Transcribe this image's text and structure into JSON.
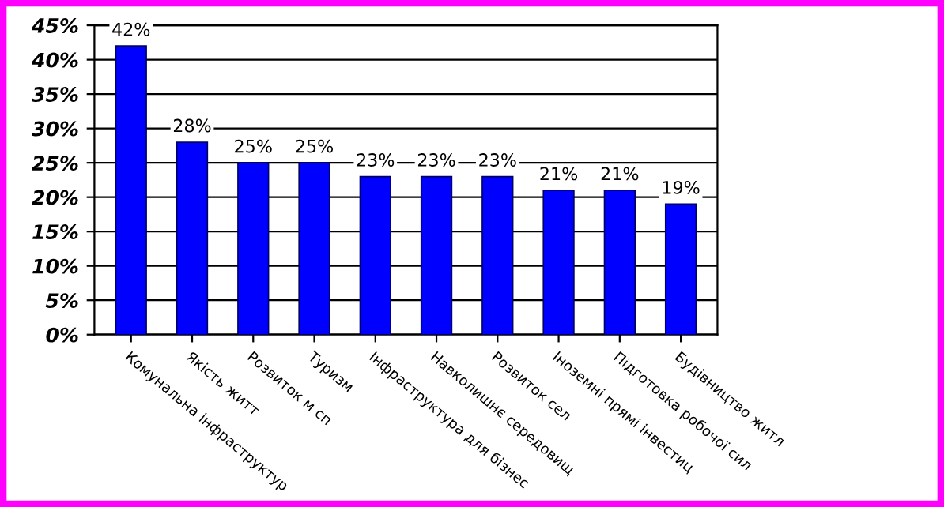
{
  "chart_data": {
    "type": "bar",
    "categories": [
      "Комунальна інфраструктур",
      "Якість житт",
      "Розвиток м сп",
      "Туризм",
      "Інфраструктура для бізнес",
      "Навколишнє середовищ",
      "Розвиток сел",
      "Іноземні прямі інвестиц",
      "Підготовка робочої сил",
      "Будівництво житл"
    ],
    "values": [
      42,
      28,
      25,
      25,
      23,
      23,
      23,
      21,
      21,
      19
    ],
    "value_labels": [
      "42%",
      "28%",
      "25%",
      "25%",
      "23%",
      "23%",
      "23%",
      "21%",
      "21%",
      "19%"
    ],
    "color": "#0000ff",
    "ylim": [
      0,
      45
    ],
    "yticks": [
      {
        "value": 0,
        "label": "0%"
      },
      {
        "value": 5,
        "label": "5%"
      },
      {
        "value": 10,
        "label": "10%"
      },
      {
        "value": 15,
        "label": "15%"
      },
      {
        "value": 20,
        "label": "20%"
      },
      {
        "value": 25,
        "label": "25%"
      },
      {
        "value": 30,
        "label": "30%"
      },
      {
        "value": 35,
        "label": "35%"
      },
      {
        "value": 40,
        "label": "40%"
      },
      {
        "value": 45,
        "label": "45%"
      }
    ],
    "grid": "y"
  }
}
